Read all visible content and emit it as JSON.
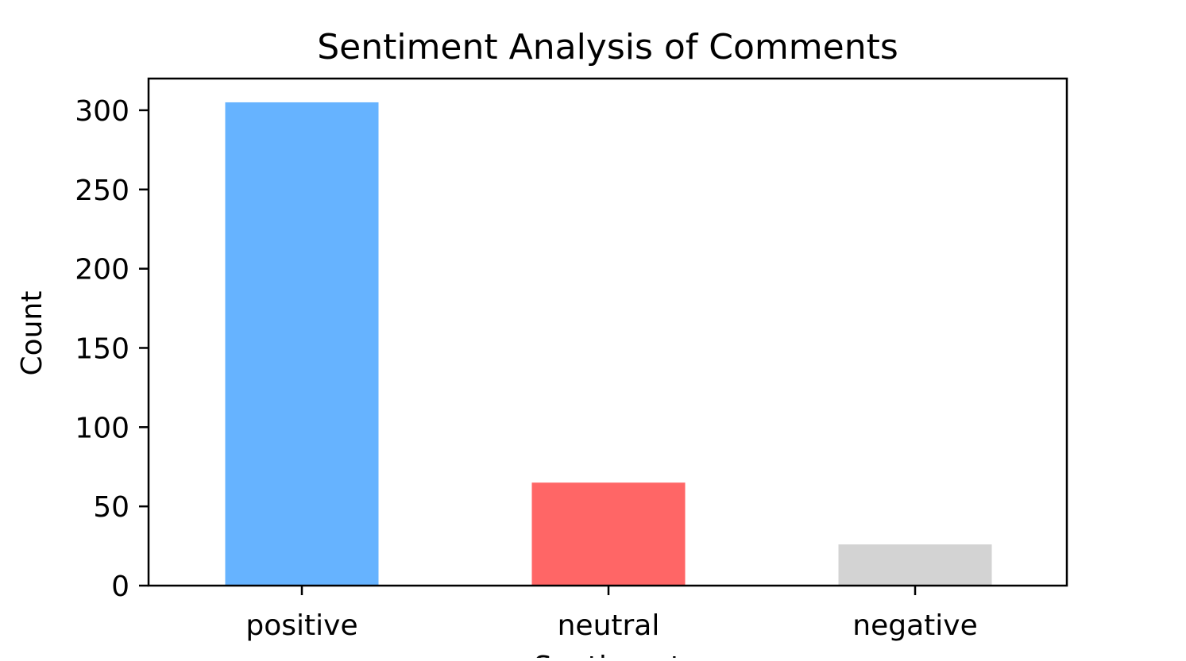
{
  "chart_data": {
    "type": "bar",
    "title": "Sentiment Analysis of Comments",
    "xlabel": "Sentiment",
    "ylabel": "Count",
    "categories": [
      "positive",
      "neutral",
      "negative"
    ],
    "values": [
      305,
      65,
      26
    ],
    "colors": [
      "#66b3ff",
      "#ff6666",
      "#d3d3d3"
    ],
    "ylim": [
      0,
      320
    ],
    "yticks": [
      0,
      50,
      100,
      150,
      200,
      250,
      300
    ],
    "ytick_labels": [
      "0",
      "50",
      "100",
      "150",
      "200",
      "250",
      "300"
    ],
    "grid": false,
    "legend": "none"
  }
}
